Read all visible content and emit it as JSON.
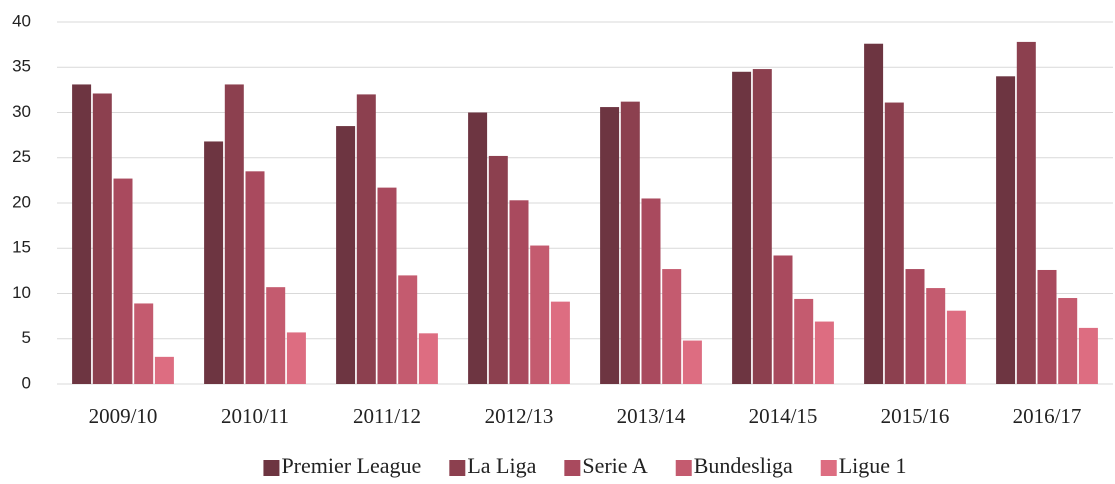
{
  "chart_data": {
    "type": "bar",
    "categories": [
      "2009/10",
      "2010/11",
      "2011/12",
      "2012/13",
      "2013/14",
      "2014/15",
      "2015/16",
      "2016/17"
    ],
    "series": [
      {
        "name": "Premier League",
        "color": "#6d3541",
        "values": [
          33.1,
          26.8,
          28.5,
          30.0,
          30.6,
          34.5,
          37.6,
          34.0
        ]
      },
      {
        "name": "La Liga",
        "color": "#8c404f",
        "values": [
          32.1,
          33.1,
          32.0,
          25.2,
          31.2,
          34.8,
          31.1,
          37.8
        ]
      },
      {
        "name": "Serie A",
        "color": "#a94a5e",
        "values": [
          22.7,
          23.5,
          21.7,
          20.3,
          20.5,
          14.2,
          12.7,
          12.6
        ]
      },
      {
        "name": "Bundesliga",
        "color": "#c45b6f",
        "values": [
          8.9,
          10.7,
          12.0,
          15.3,
          12.7,
          9.4,
          10.6,
          9.5
        ]
      },
      {
        "name": "Ligue 1",
        "color": "#dd6d81",
        "values": [
          3.0,
          5.7,
          5.6,
          9.1,
          4.8,
          6.9,
          8.1,
          6.2
        ]
      }
    ],
    "ylim": [
      0,
      40
    ],
    "yticks": [
      0,
      5,
      10,
      15,
      20,
      25,
      30,
      35,
      40
    ],
    "grid": true,
    "legend": "bottom"
  }
}
